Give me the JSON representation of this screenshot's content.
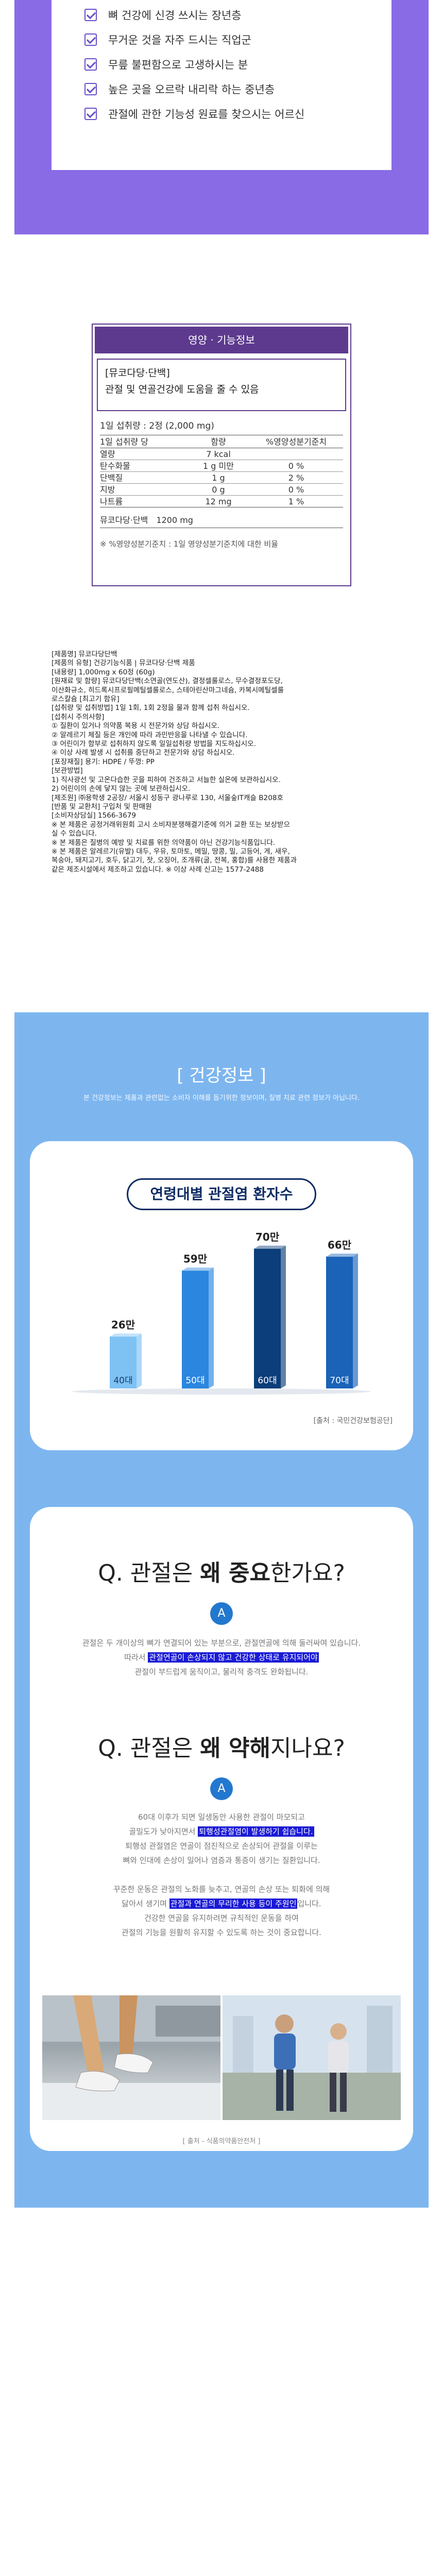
{
  "checklist": [
    "뼈 건강에 신경 쓰시는 장년층",
    "무거운 것을 자주 드시는 직업군",
    "무릎 불편함으로 고생하시는 분",
    "높은 곳을 오르락 내리락 하는 중년층",
    "관절에 관한 기능성 원료를 찾으시는 어르신"
  ],
  "nutrition": {
    "header": "영양 · 기능정보",
    "name": "[뮤코다당·단백]",
    "claim": "관절 및 연골건강에 도움을 줄 수 있음",
    "serving": "1일 섭취량 : 2정 (2,000 mg)",
    "columns": [
      "1일 섭취량 당",
      "함량",
      "%영양성분기준치"
    ],
    "rows": [
      [
        "열량",
        "7 kcal",
        ""
      ],
      [
        "탄수화물",
        "1 g 미만",
        "0 %"
      ],
      [
        "단백질",
        "1 g",
        "2 %"
      ],
      [
        "지방",
        "0 g",
        "0 %"
      ],
      [
        "나트륨",
        "12 mg",
        "1 %"
      ]
    ],
    "functional_name": "뮤코다당·단백",
    "functional_amount": "1200 mg",
    "note": "※ %영양성분기준치 : 1일 영양성분기준치에 대한 비율"
  },
  "product_info": [
    "[제품명] 뮤코다당단백",
    "[제품의 유형] 건강기능식품 | 뮤코다당·단백 제품",
    "[내용량] 1,000mg x 60정 (60g)",
    "[원재료 및 함량] 뮤코다당단백(소연골(연도산), 결정셀룰로스, 무수결정포도당,",
    "이산화규소, 히드록시프로필메틸셀룰로스, 스테아린산마그네슘, 카복시메틸셀룰",
    "로스칼슘 [최고기 함유]",
    "[섭취량 및 섭취방법] 1일 1회, 1회 2정을 물과 함께 섭취 하십시오.",
    "[섭취시 주의사항]",
    "① 질환이 있거나 의약품 복용 시 전문가와 상담 하십시오.",
    "② 알레르기 체질 등은 개인에 따라 과민반응을 나타낼 수 있습니다.",
    "③ 어린이가 함부로 섭취하지 않도록 일일섭취량 방법을 지도하십시오.",
    "④ 이상 사례 발생 시 섭취를 중단하고 전문가와 상담 하십시오.",
    "[포장재질] 용기: HDPE / 뚜껑: PP",
    "[보관방법]",
    "1) 직사광선 및 고온다습한 곳을 피하여 건조하고 서늘한 실온에 보관하십시오.",
    "2) 어린이의 손에 닿지 않는 곳에 보관하십시오.",
    "[제조원] ㈜용학생 2공장/ 서울시 성동구 광나루로 130, 서울숲IT캐슬 B208호",
    "[반품 및 교환처] 구입처 및 판매원",
    "[소비자상담실] 1566-3679",
    "※ 본 제품은 공정거래위원회 고시 소비자분쟁해결기준에 의거 교환 또는 보상받으",
    "실 수 있습니다.",
    "※ 본 제품은 질병의 예방 및 치료를 위한 의약품이 아닌 건강기능식품입니다.",
    "※ 본 제품은 알레르기(유발) 대두, 우유, 토마토, 메밀, 땅콩, 밀, 고등어, 게, 새우,",
    "복숭아, 돼지고기, 호두, 닭고기, 잣, 오징어, 조개류(굴, 전복, 홍합)를 사용한 제품과",
    "같은 제조시설에서 제조하고 있습니다.    ※ 이상 사례 신고는 1577-2488"
  ],
  "health": {
    "title": "[ 건강정보 ]",
    "subtitle": "본 건강정보는 제품과 관련없는 소비자 이해를 돕기위한 정보이며, 질병 치료 관련 정보가 아닙니다."
  },
  "chart_data": {
    "type": "bar",
    "title": "연령대별 관절염 환자수",
    "categories": [
      "40대",
      "50대",
      "60대",
      "70대"
    ],
    "values": [
      26,
      59,
      70,
      66
    ],
    "data_labels": [
      "26만",
      "59만",
      "70만",
      "66만"
    ],
    "colors": [
      "#7ec2f4",
      "#2a86df",
      "#0b3e7a",
      "#1a63b8"
    ],
    "ylim": [
      0,
      80
    ],
    "grid": false,
    "source": "[출처 : 국민건강보험공단]"
  },
  "qa": {
    "q1_prefix": "Q. 관절은 ",
    "q1_bold": "왜 중요",
    "q1_suffix": "한가요?",
    "answer_badge": "A",
    "a1_line1": "관절은 두 개이상의 뼈가 연결되어 있는 부분으로, 관절연골에 의해 둘러싸여 있습니다.",
    "a1_line2_pre": "따라서 ",
    "a1_line2_hl": "관절연골이 손상되지 않고 건강한 상태로 유지되어야",
    "a1_line3": "관절이 부드럽게 움직이고, 물리적 충격도 완화됩니다.",
    "q2_prefix": "Q. 관절은 ",
    "q2_bold": "왜 약해",
    "q2_suffix": "지나요?",
    "a2_line1": "60대 이후가 되면 일생동안 사용한 관절이 마모되고",
    "a2_line2_pre": "골밀도가 낮아지면서 ",
    "a2_line2_hl": "퇴행성관절염이 발생하기 쉽습니다.",
    "a2_line3": "퇴행성 관절염은 연골이 점진적으로 손상되어 관절을 이루는",
    "a2_line4": "뼈와 인대에 손상이 일어나 염증과 통증이 생기는 질환입니다.",
    "a2_line5": "꾸준한 운동은 관절의 노화를 늦추고, 연골의 손상 또는 퇴화에 의해",
    "a2_line6_pre": "닳아서 생기며 ",
    "a2_line6_hl": "관절과 연골의 무리한 사용 등이 주원인",
    "a2_line6_post": "입니다.",
    "a2_line7": "건강한 연골을 유지하려면 규칙적인 운동을 하여",
    "a2_line8": "관절의 기능을 원활히 유지할 수 있도록 하는 것이 중요합니다.",
    "source": "[ 출처 - 식품의약품안전처 ]"
  }
}
